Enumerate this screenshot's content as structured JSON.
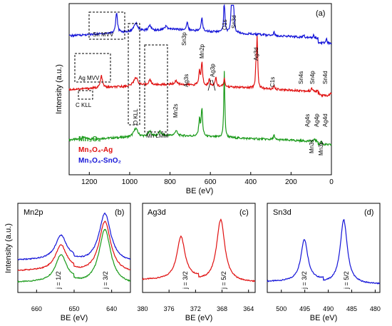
{
  "figure": {
    "ylabel_shared": "Intensity (a.u.)"
  },
  "colors": {
    "Mn3O4": "#1a9a1a",
    "Mn3O4-Ag": "#e01010",
    "Mn3O4-SnO2": "#1414d8"
  },
  "chart_data": [
    {
      "id": "a",
      "panel_label": "(a)",
      "type": "line",
      "xlabel": "BE (eV)",
      "ylabel": "Intensity (a.u.)",
      "xlim": [
        1300,
        0
      ],
      "xticks": [
        1200,
        1000,
        800,
        600,
        400,
        200,
        0
      ],
      "x_reversed": true,
      "legend": [
        "Mn₃O₄",
        "Mn₃O₄-Ag",
        "Mn₃O₄-SnO₂"
      ],
      "legend_placement": "lower-left",
      "series": [
        {
          "name": "Mn₃O₄",
          "baseline": 0.15,
          "rise": 0.08,
          "peaks": [
            [
              1230,
              0.015,
              8
            ],
            [
              970,
              0.05,
              12
            ],
            [
              900,
              0.03,
              8
            ],
            [
              850,
              0.025,
              8
            ],
            [
              770,
              0.03,
              6
            ],
            [
              654,
              0.1,
              4
            ],
            [
              642,
              0.16,
              4
            ],
            [
              531,
              0.39,
              3
            ],
            [
              285,
              0.03,
              3
            ],
            [
              83,
              0.015,
              3
            ],
            [
              50,
              0.02,
              3
            ]
          ]
        },
        {
          "name": "Mn₃O₄-Ag",
          "baseline": 0.43,
          "rise": 0.1,
          "peaks": [
            [
              1140,
              0.07,
              6
            ],
            [
              970,
              0.05,
              12
            ],
            [
              900,
              0.03,
              8
            ],
            [
              770,
              0.02,
              6
            ],
            [
              654,
              0.08,
              4
            ],
            [
              642,
              0.13,
              4
            ],
            [
              605,
              0.04,
              4
            ],
            [
              573,
              0.05,
              4
            ],
            [
              531,
              0.05,
              3
            ],
            [
              374,
              0.11,
              3
            ],
            [
              368,
              0.3,
              3
            ],
            [
              285,
              0.02,
              3
            ],
            [
              97,
              0.02,
              3
            ],
            [
              62,
              0.02,
              3
            ],
            [
              5,
              0.02,
              3
            ]
          ]
        },
        {
          "name": "Mn₃O₄-SnO₂",
          "baseline": 0.73,
          "rise": 0.12,
          "peaks": [
            [
              1065,
              0.12,
              5
            ],
            [
              970,
              0.05,
              12
            ],
            [
              900,
              0.03,
              8
            ],
            [
              820,
              0.02,
              8
            ],
            [
              715,
              0.05,
              4
            ],
            [
              642,
              0.08,
              4
            ],
            [
              531,
              0.22,
              3
            ],
            [
              495,
              0.2,
              3
            ],
            [
              487,
              0.32,
              3
            ],
            [
              285,
              0.02,
              3
            ],
            [
              137,
              0.015,
              3
            ],
            [
              89,
              0.02,
              3
            ],
            [
              25,
              0.03,
              3
            ]
          ]
        }
      ],
      "annotations": [
        "Sn MVV",
        "Ag MVV",
        "C KLL",
        "O KLL",
        "Mn LMM",
        "Sn3p",
        "Mn2p",
        "O1s",
        "Sn3d",
        "Ag3d",
        "Ag3s",
        "Ag3p",
        "Mn2s",
        "C1s",
        "Sn4s",
        "Sn4p",
        "Sn4d",
        "Ag4s",
        "Ag4p",
        "Ag4d",
        "Mn3s",
        "Mn3p"
      ]
    },
    {
      "id": "b",
      "panel_label": "(b)",
      "title": "Mn2p",
      "type": "line",
      "xlabel": "BE (eV)",
      "ylabel": "Intensity (a.u.)",
      "xlim": [
        665,
        635
      ],
      "xticks": [
        660,
        650,
        640
      ],
      "x_reversed": true,
      "series": [
        {
          "name": "Mn₃O₄",
          "offset": 0.05,
          "peaks": [
            [
              653.5,
              0.3,
              1.8
            ],
            [
              641.8,
              0.62,
              1.9
            ]
          ]
        },
        {
          "name": "Mn₃O₄-Ag",
          "offset": 0.18,
          "peaks": [
            [
              653.5,
              0.28,
              1.8
            ],
            [
              641.8,
              0.58,
              1.9
            ]
          ]
        },
        {
          "name": "Mn₃O₄-SnO₂",
          "offset": 0.3,
          "peaks": [
            [
              653.5,
              0.27,
              1.8
            ],
            [
              641.8,
              0.55,
              1.9
            ]
          ]
        }
      ],
      "annotations": [
        "j = 1/2",
        "j = 3/2"
      ]
    },
    {
      "id": "c",
      "panel_label": "(c)",
      "title": "Ag3d",
      "type": "line",
      "xlabel": "BE (eV)",
      "xlim": [
        380,
        363
      ],
      "xticks": [
        380,
        376,
        372,
        368,
        364
      ],
      "x_reversed": true,
      "series": [
        {
          "name": "Mn₃O₄-Ag",
          "offset": 0.08,
          "peaks": [
            [
              374.2,
              0.48,
              0.75
            ],
            [
              368.2,
              0.7,
              0.75
            ]
          ]
        }
      ],
      "annotations": [
        "j = 3/2",
        "j = 5/2"
      ]
    },
    {
      "id": "d",
      "panel_label": "(d)",
      "title": "Sn3d",
      "type": "line",
      "xlabel": "BE (eV)",
      "xlim": [
        503,
        479
      ],
      "xticks": [
        500,
        495,
        490,
        485,
        480
      ],
      "x_reversed": true,
      "series": [
        {
          "name": "Mn₃O₄-SnO₂",
          "offset": 0.06,
          "peaks": [
            [
              495.1,
              0.47,
              0.9
            ],
            [
              486.7,
              0.72,
              0.9
            ]
          ]
        }
      ],
      "annotations": [
        "j = 3/2",
        "j = 5/2"
      ]
    }
  ]
}
